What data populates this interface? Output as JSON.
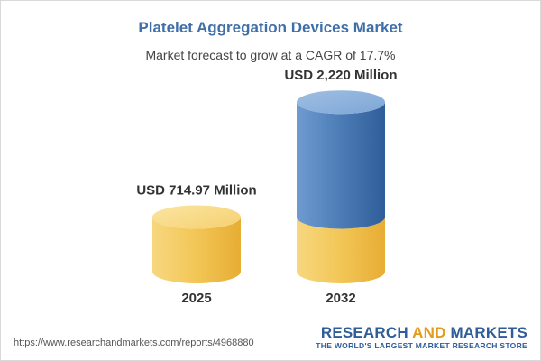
{
  "chart_data": {
    "type": "bar",
    "title": "Platelet Aggregation Devices Market",
    "subtitle": "Market forecast to grow at a CAGR of 17.7%",
    "categories": [
      "2025",
      "2032"
    ],
    "values": [
      714.97,
      2220
    ],
    "value_labels": [
      "USD 714.97 Million",
      "USD 2,220 Million"
    ],
    "unit": "USD Million",
    "style": "3d-cylinder",
    "colors": {
      "base": "#f3c85a",
      "growth": "#4f7fb8"
    },
    "grid": false,
    "legend": "none"
  },
  "footer": {
    "url": "https://www.researchandmarkets.com/reports/4968880",
    "brand_research": "RESEARCH",
    "brand_and": "AND",
    "brand_markets": "MARKETS",
    "brand_tagline": "THE WORLD'S LARGEST MARKET RESEARCH STORE"
  }
}
